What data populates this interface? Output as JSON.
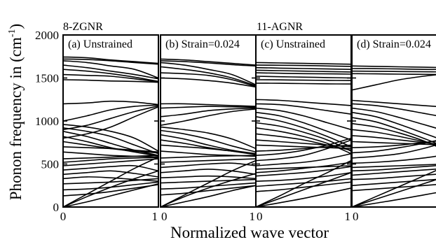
{
  "chart_data": {
    "type": "line",
    "ylabel": "Phonon frequency in (cm",
    "ylabel_superscript": "-1",
    "ylabel_close": ")",
    "xlabel": "Normalized wave vector",
    "ylim": [
      0,
      2000
    ],
    "yticks": [
      "0",
      "500",
      "1000",
      "1500",
      "2000"
    ],
    "group_labels": [
      "8-ZGNR",
      "11-AGNR"
    ],
    "panels": [
      {
        "title": "(a) Unstrained",
        "xticks": [
          "0",
          "1"
        ],
        "x": [
          0,
          0.25,
          0.5,
          0.75,
          1
        ],
        "series": [
          {
            "values": [
              1745,
              1735,
              1710,
              1690,
              1670
            ]
          },
          {
            "values": [
              1720,
              1715,
              1700,
              1680,
              1660
            ]
          },
          {
            "values": [
              1700,
              1680,
              1640,
              1600,
              1500
            ]
          },
          {
            "values": [
              1650,
              1620,
              1580,
              1540,
              1490
            ]
          },
          {
            "values": [
              1600,
              1580,
              1550,
              1510,
              1460
            ]
          },
          {
            "values": [
              1540,
              1530,
              1520,
              1490,
              1455
            ]
          },
          {
            "values": [
              1480,
              1475,
              1465,
              1460,
              1450
            ]
          },
          {
            "values": [
              1200,
              1210,
              1230,
              1220,
              1190
            ]
          },
          {
            "values": [
              1000,
              1060,
              1130,
              1170,
              1185
            ]
          },
          {
            "values": [
              900,
              950,
              1030,
              1110,
              1175
            ]
          },
          {
            "values": [
              800,
              850,
              930,
              1050,
              1165
            ]
          },
          {
            "values": [
              960,
              930,
              880,
              800,
              650
            ]
          },
          {
            "values": [
              920,
              880,
              820,
              720,
              620
            ]
          },
          {
            "values": [
              880,
              820,
              740,
              660,
              600
            ]
          },
          {
            "values": [
              820,
              760,
              690,
              640,
              590
            ]
          },
          {
            "values": [
              760,
              720,
              680,
              650,
              630
            ]
          },
          {
            "values": [
              700,
              690,
              680,
              660,
              640
            ]
          },
          {
            "values": [
              640,
              620,
              600,
              590,
              580
            ]
          },
          {
            "values": [
              560,
              570,
              580,
              590,
              600
            ]
          },
          {
            "values": [
              520,
              540,
              560,
              570,
              575
            ]
          },
          {
            "values": [
              480,
              500,
              520,
              540,
              560
            ]
          },
          {
            "values": [
              430,
              450,
              470,
              480,
              420
            ]
          },
          {
            "values": [
              380,
              400,
              420,
              390,
              350
            ]
          },
          {
            "values": [
              330,
              350,
              340,
              320,
              300
            ]
          },
          {
            "values": [
              270,
              280,
              290,
              310,
              330
            ]
          },
          {
            "values": [
              200,
              210,
              230,
              260,
              290
            ]
          },
          {
            "values": [
              130,
              150,
              180,
              220,
              260
            ]
          },
          {
            "values": [
              0,
              120,
              230,
              330,
              420
            ]
          },
          {
            "values": [
              0,
              150,
              300,
              450,
              580
            ]
          },
          {
            "values": [
              0,
              60,
              130,
              200,
              270
            ]
          }
        ]
      },
      {
        "title": "(b) Strain=0.024",
        "xticks": [
          "0",
          "1"
        ],
        "x": [
          0,
          0.25,
          0.5,
          0.75,
          1
        ],
        "series": [
          {
            "values": [
              1720,
              1710,
              1690,
              1670,
              1650
            ]
          },
          {
            "values": [
              1700,
              1690,
              1675,
              1655,
              1640
            ]
          },
          {
            "values": [
              1680,
              1650,
              1600,
              1540,
              1420
            ]
          },
          {
            "values": [
              1630,
              1600,
              1560,
              1500,
              1410
            ]
          },
          {
            "values": [
              1560,
              1550,
              1530,
              1480,
              1400
            ]
          },
          {
            "values": [
              1500,
              1490,
              1470,
              1440,
              1395
            ]
          },
          {
            "values": [
              1200,
              1200,
              1190,
              1180,
              1170
            ]
          },
          {
            "values": [
              1150,
              1160,
              1170,
              1165,
              1160
            ]
          },
          {
            "values": [
              1050,
              1080,
              1120,
              1140,
              1150
            ]
          },
          {
            "values": [
              950,
              1000,
              1060,
              1110,
              1140
            ]
          },
          {
            "values": [
              930,
              900,
              860,
              790,
              680
            ]
          },
          {
            "values": [
              890,
              850,
              790,
              710,
              640
            ]
          },
          {
            "values": [
              840,
              790,
              720,
              660,
              620
            ]
          },
          {
            "values": [
              780,
              740,
              690,
              650,
              610
            ]
          },
          {
            "values": [
              720,
              700,
              680,
              650,
              620
            ]
          },
          {
            "values": [
              650,
              630,
              610,
              600,
              590
            ]
          },
          {
            "values": [
              570,
              580,
              590,
              595,
              600
            ]
          },
          {
            "values": [
              520,
              530,
              540,
              550,
              560
            ]
          },
          {
            "values": [
              460,
              480,
              500,
              510,
              480
            ]
          },
          {
            "values": [
              400,
              420,
              440,
              420,
              380
            ]
          },
          {
            "values": [
              340,
              350,
              360,
              350,
              330
            ]
          },
          {
            "values": [
              280,
              290,
              300,
              310,
              320
            ]
          },
          {
            "values": [
              210,
              220,
              240,
              260,
              280
            ]
          },
          {
            "values": [
              140,
              160,
              190,
              220,
              250
            ]
          },
          {
            "values": [
              0,
              120,
              220,
              310,
              390
            ]
          },
          {
            "values": [
              0,
              140,
              280,
              420,
              540
            ]
          },
          {
            "values": [
              0,
              60,
              120,
              190,
              250
            ]
          }
        ]
      },
      {
        "title": "(c) Unstrained",
        "xticks": [
          "0",
          "1"
        ],
        "x": [
          0,
          0.25,
          0.5,
          0.75,
          1
        ],
        "series": [
          {
            "values": [
              1680,
              1675,
              1670,
              1665,
              1660
            ]
          },
          {
            "values": [
              1650,
              1648,
              1645,
              1640,
              1635
            ]
          },
          {
            "values": [
              1620,
              1615,
              1610,
              1605,
              1600
            ]
          },
          {
            "values": [
              1590,
              1585,
              1580,
              1575,
              1570
            ]
          },
          {
            "values": [
              1560,
              1555,
              1550,
              1548,
              1545
            ]
          },
          {
            "values": [
              1520,
              1515,
              1510,
              1505,
              1500
            ]
          },
          {
            "values": [
              1480,
              1478,
              1475,
              1472,
              1470
            ]
          },
          {
            "values": [
              1440,
              1438,
              1435,
              1432,
              1430
            ]
          },
          {
            "values": [
              1250,
              1240,
              1220,
              1200,
              1180
            ]
          },
          {
            "values": [
              1200,
              1190,
              1160,
              1120,
              1080
            ]
          },
          {
            "values": [
              1150,
              1120,
              1060,
              980,
              900
            ]
          },
          {
            "values": [
              1100,
              1060,
              980,
              880,
              780
            ]
          },
          {
            "values": [
              1050,
              1000,
              920,
              820,
              700
            ]
          },
          {
            "values": [
              980,
              940,
              870,
              780,
              650
            ]
          },
          {
            "values": [
              920,
              880,
              820,
              740,
              620
            ]
          },
          {
            "values": [
              850,
              820,
              780,
              720,
              660
            ]
          },
          {
            "values": [
              780,
              760,
              740,
              720,
              700
            ]
          },
          {
            "values": [
              720,
              710,
              700,
              690,
              680
            ]
          },
          {
            "values": [
              650,
              660,
              680,
              700,
              720
            ]
          },
          {
            "values": [
              600,
              620,
              660,
              720,
              800
            ]
          },
          {
            "values": [
              540,
              560,
              600,
              680,
              780
            ]
          },
          {
            "values": [
              480,
              500,
              520,
              560,
              620
            ]
          },
          {
            "values": [
              440,
              450,
              460,
              470,
              480
            ]
          },
          {
            "values": [
              400,
              420,
              450,
              480,
              520
            ]
          },
          {
            "values": [
              360,
              380,
              400,
              430,
              470
            ]
          },
          {
            "values": [
              300,
              310,
              330,
              360,
              400
            ]
          },
          {
            "values": [
              240,
              260,
              280,
              300,
              330
            ]
          },
          {
            "values": [
              180,
              200,
              230,
              260,
              290
            ]
          },
          {
            "values": [
              0,
              100,
              200,
              300,
              400
            ]
          },
          {
            "values": [
              0,
              130,
              270,
              400,
              540
            ]
          },
          {
            "values": [
              0,
              50,
              100,
              160,
              220
            ]
          }
        ]
      },
      {
        "title": "(d) Strain=0.024",
        "xticks": [
          "0"
        ],
        "x": [
          0,
          0.25,
          0.5,
          0.75,
          1
        ],
        "series": [
          {
            "values": [
              1640,
              1635,
              1630,
              1625,
              1620
            ]
          },
          {
            "values": [
              1610,
              1608,
              1605,
              1600,
              1598
            ]
          },
          {
            "values": [
              1580,
              1578,
              1575,
              1572,
              1570
            ]
          },
          {
            "values": [
              1550,
              1548,
              1545,
              1542,
              1540
            ]
          },
          {
            "values": [
              1360,
              1420,
              1480,
              1520,
              1550
            ]
          },
          {
            "values": [
              1240,
              1220,
              1200,
              1180,
              1160
            ]
          },
          {
            "values": [
              1200,
              1180,
              1140,
              1090,
              1040
            ]
          },
          {
            "values": [
              1150,
              1110,
              1040,
              960,
              880
            ]
          },
          {
            "values": [
              1100,
              1050,
              960,
              860,
              760
            ]
          },
          {
            "values": [
              1040,
              990,
              900,
              800,
              690
            ]
          },
          {
            "values": [
              970,
              930,
              860,
              770,
              650
            ]
          },
          {
            "values": [
              900,
              870,
              820,
              760,
              690
            ]
          },
          {
            "values": [
              830,
              810,
              780,
              750,
              720
            ]
          },
          {
            "values": [
              760,
              750,
              740,
              730,
              720
            ]
          },
          {
            "values": [
              690,
              700,
              720,
              750,
              780
            ]
          },
          {
            "values": [
              630,
              650,
              690,
              740,
              800
            ]
          },
          {
            "values": [
              570,
              590,
              620,
              680,
              760
            ]
          },
          {
            "values": [
              510,
              520,
              540,
              570,
              610
            ]
          },
          {
            "values": [
              460,
              470,
              480,
              490,
              500
            ]
          },
          {
            "values": [
              420,
              430,
              450,
              470,
              490
            ]
          },
          {
            "values": [
              370,
              390,
              410,
              430,
              450
            ]
          },
          {
            "values": [
              320,
              330,
              350,
              370,
              390
            ]
          },
          {
            "values": [
              250,
              270,
              290,
              310,
              330
            ]
          },
          {
            "values": [
              190,
              210,
              230,
              250,
              270
            ]
          },
          {
            "values": [
              0,
              90,
              180,
              270,
              360
            ]
          },
          {
            "values": [
              0,
              120,
              240,
              360,
              480
            ]
          },
          {
            "values": [
              0,
              45,
              90,
              140,
              190
            ]
          }
        ]
      }
    ]
  }
}
